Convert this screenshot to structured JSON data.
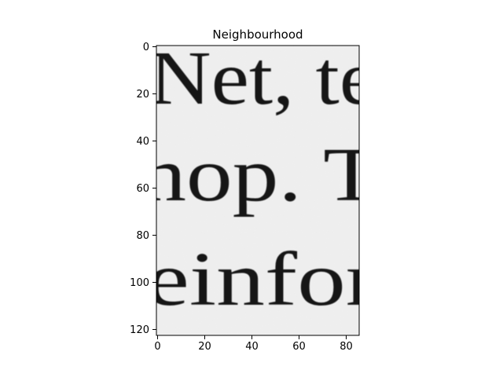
{
  "chart_data": {
    "type": "heatmap",
    "title": "Neighbourhood",
    "colormap": "gray",
    "xlim": [
      -0.5,
      85.5
    ],
    "ylim": [
      122.5,
      -0.5
    ],
    "x_ticks": [
      0,
      20,
      40,
      60,
      80
    ],
    "y_ticks": [
      0,
      20,
      40,
      60,
      80,
      100,
      120
    ],
    "image_lines": [
      "Net, te",
      "hop. T",
      "einfor"
    ],
    "colors": {
      "paper": "#ededed",
      "ink": "#161616",
      "axes": "#000000"
    }
  }
}
